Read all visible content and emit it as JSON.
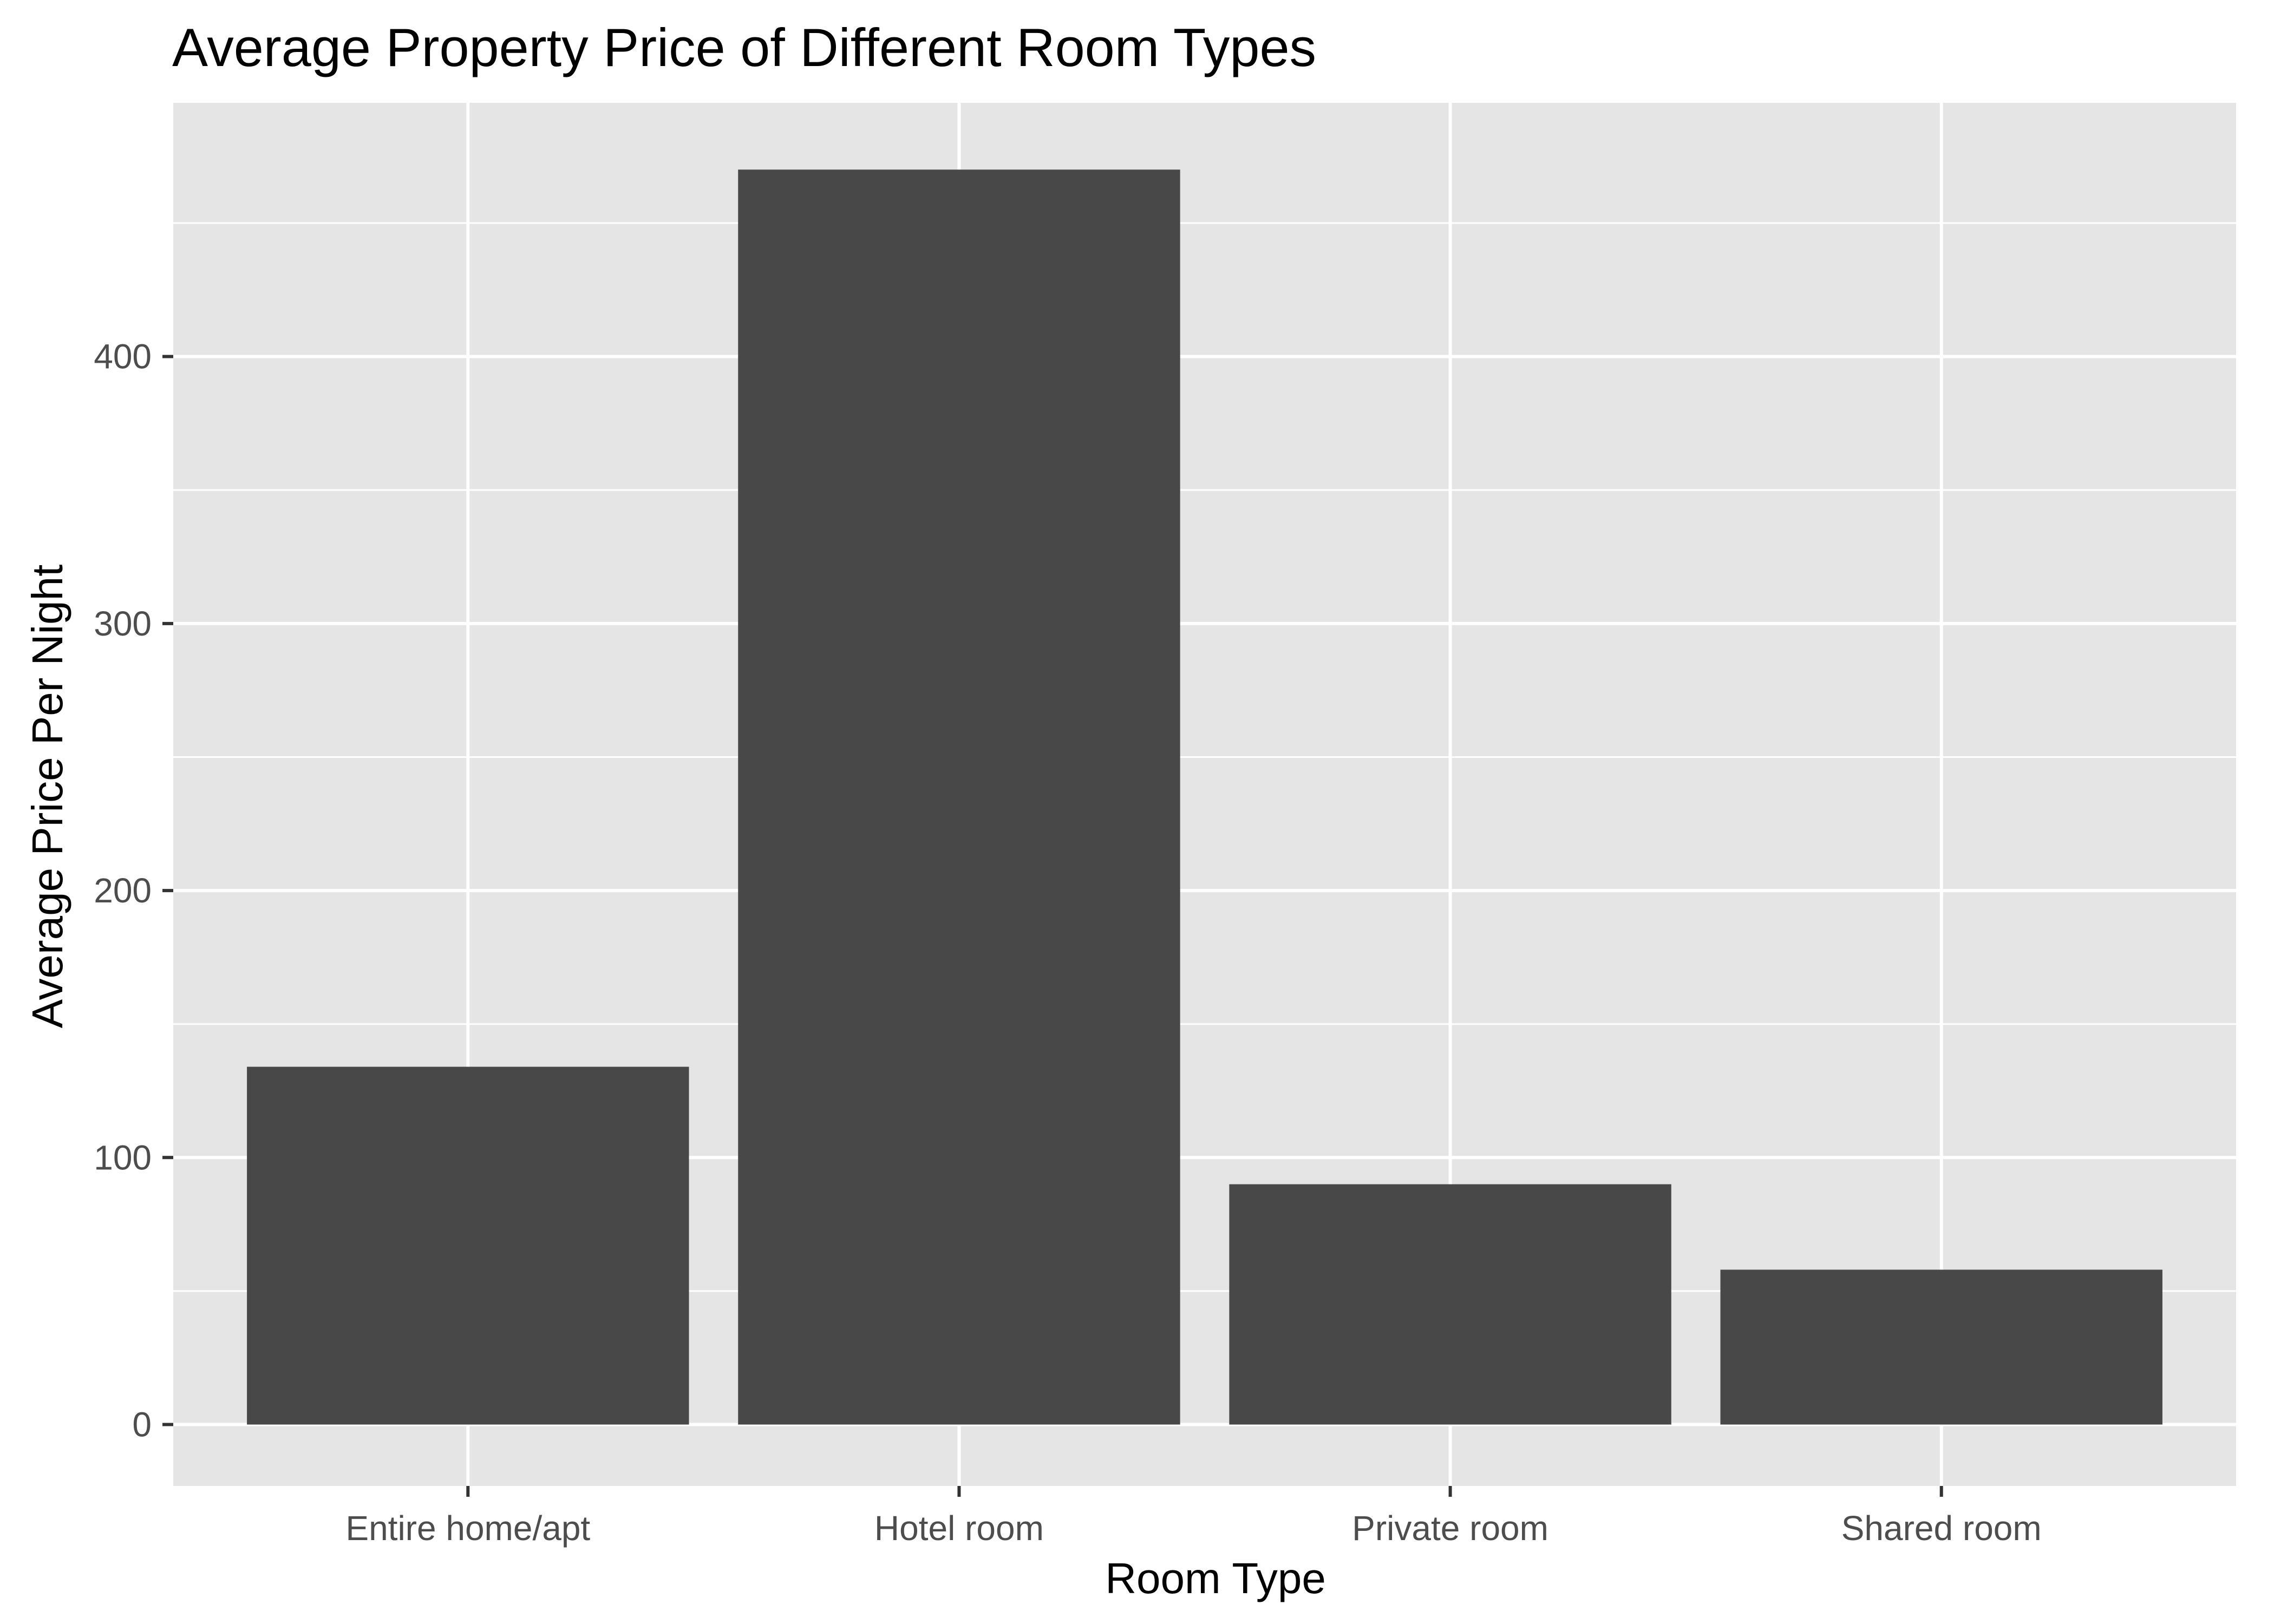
{
  "chart_data": {
    "type": "bar",
    "title": "Average Property Price of Different Room Types",
    "xlabel": "Room Type",
    "ylabel": "Average Price Per Night",
    "categories": [
      "Entire home/apt",
      "Hotel room",
      "Private room",
      "Shared room"
    ],
    "values": [
      134,
      470,
      90,
      58
    ],
    "ylim": [
      -23,
      495
    ],
    "yticks": [
      0,
      100,
      200,
      300,
      400
    ],
    "ytick_labels": [
      "0",
      "100",
      "200",
      "300",
      "400"
    ],
    "grid": true,
    "legend": "none",
    "colors": {
      "bar": "#484848",
      "panel_background": "#e5e5e5",
      "grid_line": "#ffffff",
      "tick_label": "#4d4d4d",
      "tick_mark": "#333333"
    }
  }
}
